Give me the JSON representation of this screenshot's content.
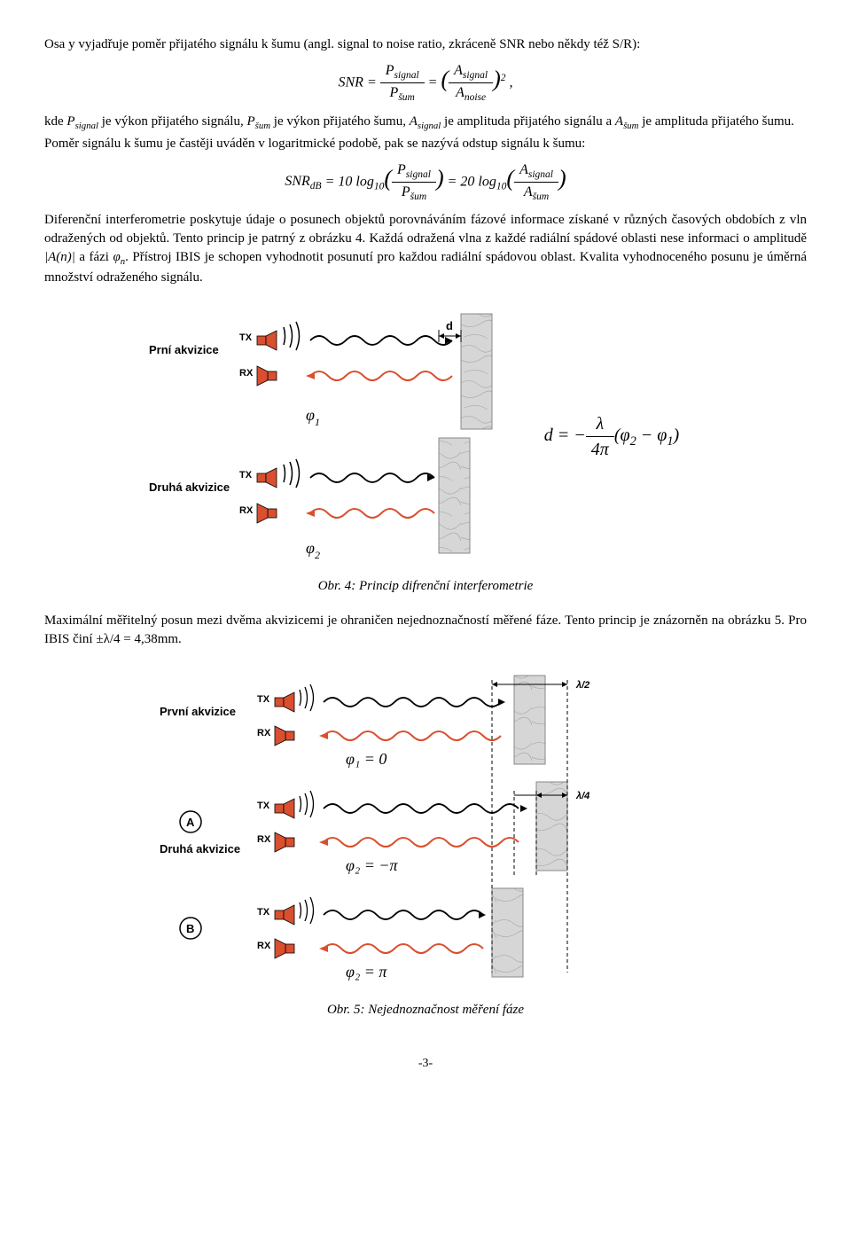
{
  "para1": "Osa y vyjadřuje poměr přijatého signálu k šumu (angl. signal to noise ratio, zkráceně SNR nebo někdy též S/R):",
  "formula1_html": "<i>SNR</i> = <span style='display:inline-block;vertical-align:middle;text-align:center;'><span style='display:block;border-bottom:1px solid #000;padding:0 6px'><i>P<sub>signal</sub></i></span><span style='display:block;padding:0 6px'><i>P<sub>šum</sub></i></span></span> = <span style='font-size:26px'>(</span><span style='display:inline-block;vertical-align:middle;text-align:center;'><span style='display:block;border-bottom:1px solid #000;padding:0 6px'><i>A<sub>signal</sub></i></span><span style='display:block;padding:0 6px'><i>A<sub>noise</sub></i></span></span><span style='font-size:26px'>)</span><sup>2</sup> ,",
  "para2_html": "kde <i>P<sub>signal</sub></i> je výkon přijatého signálu, <i>P<sub>šum</sub></i> je výkon přijatého šumu, <i>A<sub>signal</sub></i> je amplituda přijatého signálu a <i>A<sub>šum</sub></i> je amplituda přijatého šumu.",
  "para3": "Poměr signálu k šumu je častěji uváděn v logaritmické podobě, pak se nazývá odstup signálu k šumu:",
  "formula2_html": "<i>SNR<sub>dB</sub></i> = 10 log<sub>10</sub><span style='font-size:26px'>(</span><span style='display:inline-block;vertical-align:middle;text-align:center;'><span style='display:block;border-bottom:1px solid #000;padding:0 6px'><i>P<sub>signal</sub></i></span><span style='display:block;padding:0 6px'><i>P<sub>šum</sub></i></span></span><span style='font-size:26px'>)</span> = 20 log<sub>10</sub><span style='font-size:26px'>(</span><span style='display:inline-block;vertical-align:middle;text-align:center;'><span style='display:block;border-bottom:1px solid #000;padding:0 6px'><i>A<sub>signal</sub></i></span><span style='display:block;padding:0 6px'><i>A<sub>šum</sub></i></span></span><span style='font-size:26px'>)</span>",
  "para4_html": "Diferenční interferometrie poskytuje údaje o posunech objektů porovnáváním fázové informace získané v různých časových obdobích z vln odražených od objektů. Tento princip je patrný z obrázku 4. Každá odražená vlna z každé radiální spádové oblasti nese informaci o amplitudě <i>|A(n)|</i> a fázi <i>φ<sub>n</sub></i>. Přístroj IBIS je schopen vyhodnotit posunutí pro každou radiální spádovou oblast. Kvalita vyhodnoceného posunu je úměrná množství odraženého signálu.",
  "fig4": {
    "label_first": "Prní akvizice",
    "label_second": "Druhá akvizice",
    "tx": "TX",
    "rx": "RX",
    "phi1": "φ",
    "phi1_sub": "1",
    "phi2": "φ",
    "phi2_sub": "2",
    "d": "d",
    "eq_html": "<i>d</i> = −<span style='display:inline-block;vertical-align:middle;text-align:center;'><span style='display:block;border-bottom:1px solid #000;padding:0 6px'><i>λ</i></span><span style='display:block;padding:0 6px'>4<i>π</i></span></span>(<i>φ</i><sub>2</sub> − <i>φ</i><sub>1</sub>)",
    "caption": "Obr. 4: Princip difrenční interferometrie"
  },
  "para5": "Maximální měřitelný posun mezi dvěma akvizicemi je ohraničen nejednoznačností měřené fáze. Tento princip je znázorněn na obrázku 5. Pro IBIS činí ±λ/4 = 4,38mm.",
  "fig5": {
    "label_first": "První akvizice",
    "label_second": "Druhá akvizice",
    "tx": "TX",
    "rx": "RX",
    "phi1": "φ₁ = 0",
    "phi2a": "φ₂ = −π",
    "phi2b": "φ₂ = π",
    "A": "A",
    "B": "B",
    "lambda2": "λ/2",
    "lambda4": "λ/4",
    "caption": "Obr. 5: Nejednoznačnost měření fáze"
  },
  "page_num": "-3-",
  "colors": {
    "speaker": "#d94f2f",
    "wave": "#d94f2f",
    "wall": "#cfcfcf"
  }
}
